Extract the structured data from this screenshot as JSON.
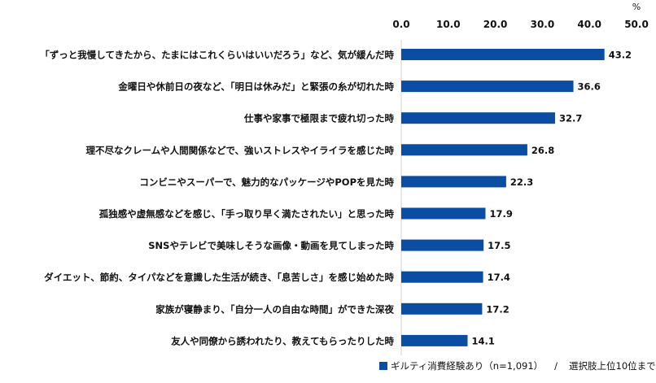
{
  "chart_data": {
    "type": "bar",
    "orientation": "horizontal",
    "unit_label": "%",
    "xlim": [
      0,
      50
    ],
    "ticks": [
      "0.0",
      "10.0",
      "20.0",
      "30.0",
      "40.0",
      "50.0"
    ],
    "grid": false,
    "categories": [
      "「ずっと我慢してきたから、たまにはこれくらいはいいだろう」など、気が緩んだ時",
      "金曜日や休前日の夜など、「明日は休みだ」と緊張の糸が切れた時",
      "仕事や家事で極限まで疲れ切った時",
      "理不尽なクレームや人間関係などで、強いストレスやイライラを感じた時",
      "コンビニやスーパーで、魅力的なパッケージやPOPを見た時",
      "孤独感や虚無感などを感じ、「手っ取り早く満たされたい」と思った時",
      "SNSやテレビで美味しそうな画像・動画を見てしまった時",
      "ダイエット、節約、タイパなどを意識した生活が続き、「息苦しさ」を感じ始めた時",
      "家族が寝静まり、「自分一人の自由な時間」ができた深夜",
      "友人や同僚から誘われたり、教えてもらったりした時"
    ],
    "series": [
      {
        "name": "ギルティ消費経験あり（n=1,091）",
        "color": "#0a4da2",
        "values": [
          43.2,
          36.6,
          32.7,
          26.8,
          22.3,
          17.9,
          17.5,
          17.4,
          17.2,
          14.1
        ],
        "value_labels": [
          "43.2",
          "36.6",
          "32.7",
          "26.8",
          "22.3",
          "17.9",
          "17.5",
          "17.4",
          "17.2",
          "14.1"
        ]
      }
    ],
    "legend": {
      "position": "bottom-right",
      "series_label": "ギルティ消費経験あり（n=1,091）",
      "separator": "/",
      "note": "選択肢上位10位まで"
    }
  }
}
